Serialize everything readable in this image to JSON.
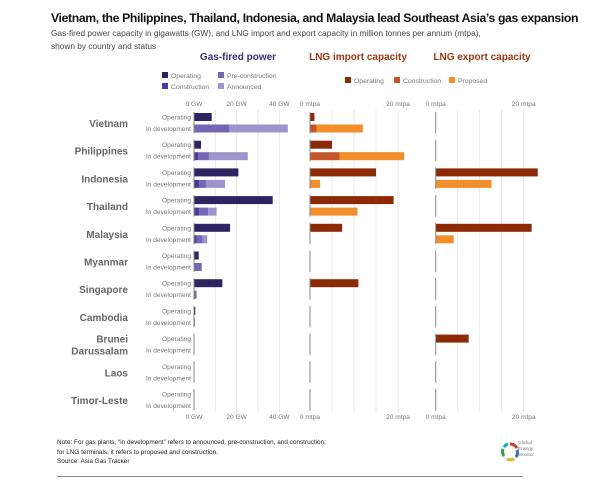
{
  "header": {
    "title": "Vietnam, the Philippines, Thailand, Indonesia, and Malaysia lead Southeast Asia’s gas expansion",
    "subtitle": "Gas-fired power capacity in gigawatts (GW), and LNG import and export capacity in million tonnes per annum (mtpa), shown by country and status"
  },
  "footer": {
    "note_line1": "Note: For gas plants, “in development” refers to announced, pre-construction, and construction;",
    "note_line2": "for LNG terminals, it refers to proposed and construction.",
    "source": "Source: Asia Gas Tracker",
    "logo_line1": "Global",
    "logo_line2": "Energy",
    "logo_line3": "Monitor"
  },
  "chart_data": {
    "type": "bar",
    "orientation": "horizontal",
    "stacked": true,
    "title": "Vietnam, the Philippines, Thailand, Indonesia, and Malaysia lead Southeast Asia’s gas expansion",
    "countries": [
      "Vietnam",
      "Philippines",
      "Indonesia",
      "Thailand",
      "Malaysia",
      "Myanmar",
      "Singapore",
      "Cambodia",
      "Brunei Darussalam",
      "Laos",
      "Timor-Leste"
    ],
    "row_labels": [
      "Operating",
      "In development"
    ],
    "panels": [
      {
        "id": "gas",
        "title": "Gas-fired power",
        "title_color": "#3b2f7a",
        "unit": "GW",
        "xlim": [
          0,
          45
        ],
        "ticks": [
          0,
          20,
          40
        ],
        "tick_labels": [
          "0 GW",
          "20 GW",
          "40 GW"
        ],
        "gridlines": [
          0,
          10,
          20,
          30,
          40
        ],
        "legend": [
          {
            "name": "Operating",
            "color": "#2e2462"
          },
          {
            "name": "Pre-construction",
            "color": "#7565b4"
          },
          {
            "name": "Construction",
            "color": "#4b3b9a"
          },
          {
            "name": "Announced",
            "color": "#9f93cc"
          }
        ],
        "series": [
          {
            "name": "Operating",
            "row": "Operating",
            "color": "#2e2462",
            "values": [
              8.3,
              3.3,
              20.8,
              36.9,
              16.9,
              2.2,
              13.3,
              0.6,
              0,
              0,
              0
            ]
          },
          {
            "name": "Construction",
            "row": "In development",
            "color": "#4b3b9a",
            "values": [
              0,
              1.9,
              2.5,
              2.5,
              1.3,
              0,
              0,
              0.4,
              0,
              0,
              0
            ]
          },
          {
            "name": "Pre-construction",
            "row": "In development",
            "color": "#7565b4",
            "values": [
              16.6,
              5.1,
              3.1,
              4.2,
              2.8,
              3.6,
              1.2,
              0,
              0,
              0,
              0
            ]
          },
          {
            "name": "Announced",
            "row": "In development",
            "color": "#9f93cc",
            "values": [
              27.4,
              18.2,
              9.0,
              3.9,
              2.1,
              0,
              0,
              0,
              0,
              0,
              0
            ]
          }
        ]
      },
      {
        "id": "import",
        "title": "LNG import capacity",
        "title_color": "#9a3a12",
        "unit": "mtpa",
        "xlim": [
          0,
          22
        ],
        "ticks": [
          0,
          20
        ],
        "tick_labels": [
          "0 mtpa",
          "20 mtpa"
        ],
        "gridlines": [
          0,
          5,
          10,
          15,
          20
        ],
        "series": [
          {
            "name": "Operating",
            "row": "Operating",
            "color": "#8b2a05",
            "values": [
              1.0,
              5.0,
              15.0,
              19.0,
              7.3,
              0,
              11.0,
              0,
              0,
              0,
              0
            ]
          },
          {
            "name": "Construction",
            "row": "In development",
            "color": "#c4542a",
            "values": [
              1.5,
              6.7,
              0.2,
              0,
              0,
              0,
              0,
              0,
              0,
              0,
              0
            ]
          },
          {
            "name": "Proposed",
            "row": "In development",
            "color": "#f28e2b",
            "values": [
              10.5,
              14.7,
              2.1,
              10.8,
              0,
              0,
              0,
              0,
              0,
              0,
              0
            ]
          }
        ]
      },
      {
        "id": "export",
        "title": "LNG export capacity",
        "title_color": "#9a3a12",
        "unit": "mtpa",
        "xlim": [
          0,
          22
        ],
        "ticks": [
          0,
          20
        ],
        "tick_labels": [
          "0 mtpa",
          "20 mtpa"
        ],
        "gridlines": [
          0,
          5,
          10,
          15,
          20
        ],
        "series": [
          {
            "name": "Operating",
            "row": "Operating",
            "color": "#8b2a05",
            "values": [
              0,
              0,
              23.2,
              0,
              21.8,
              0,
              0,
              0,
              7.5,
              0,
              0
            ]
          },
          {
            "name": "Construction",
            "row": "In development",
            "color": "#c4542a",
            "values": [
              0,
              0,
              0,
              0,
              0,
              0,
              0,
              0,
              0,
              0,
              0
            ]
          },
          {
            "name": "Proposed",
            "row": "In development",
            "color": "#f28e2b",
            "values": [
              0,
              0,
              12.7,
              0,
              4.1,
              0,
              0,
              0,
              0,
              0,
              0
            ]
          }
        ]
      }
    ],
    "lng_legend": [
      {
        "name": "Operating",
        "color": "#8b2a05"
      },
      {
        "name": "Construction",
        "color": "#c4542a"
      },
      {
        "name": "Proposed",
        "color": "#f28e2b"
      }
    ],
    "legend_position": "top"
  }
}
